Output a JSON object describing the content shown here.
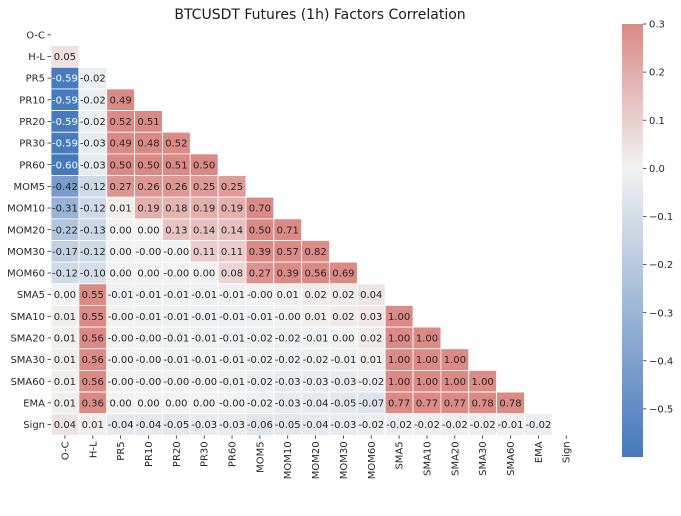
{
  "chart_data": {
    "type": "heatmap",
    "title": "BTCUSDT Futures (1h) Factors Correlation",
    "labels": [
      "O-C",
      "H-L",
      "PR5",
      "PR10",
      "PR20",
      "PR30",
      "PR60",
      "MOM5",
      "MOM10",
      "MOM20",
      "MOM30",
      "MOM60",
      "SMA5",
      "SMA10",
      "SMA20",
      "SMA30",
      "SMA60",
      "EMA",
      "Sign"
    ],
    "mask": "upper-triangle (diagonal and above hidden)",
    "rows": [
      [],
      [
        "0.05"
      ],
      [
        "-0.59",
        "-0.02"
      ],
      [
        "-0.59",
        "-0.02",
        "0.49"
      ],
      [
        "-0.59",
        "-0.02",
        "0.52",
        "0.51"
      ],
      [
        "-0.59",
        "-0.03",
        "0.49",
        "0.48",
        "0.52"
      ],
      [
        "-0.60",
        "-0.03",
        "0.50",
        "0.50",
        "0.51",
        "0.50"
      ],
      [
        "-0.42",
        "-0.12",
        "0.27",
        "0.26",
        "0.26",
        "0.25",
        "0.25"
      ],
      [
        "-0.31",
        "-0.12",
        "0.01",
        "0.19",
        "0.18",
        "0.19",
        "0.19",
        "0.70"
      ],
      [
        "-0.22",
        "-0.13",
        "0.00",
        "0.00",
        "0.13",
        "0.14",
        "0.14",
        "0.50",
        "0.71"
      ],
      [
        "-0.17",
        "-0.12",
        "0.00",
        "-0.00",
        "-0.00",
        "0.11",
        "0.11",
        "0.39",
        "0.57",
        "0.82"
      ],
      [
        "-0.12",
        "-0.10",
        "0.00",
        "0.00",
        "-0.00",
        "0.00",
        "0.08",
        "0.27",
        "0.39",
        "0.56",
        "0.69"
      ],
      [
        "0.00",
        "0.55",
        "-0.01",
        "-0.01",
        "-0.01",
        "-0.01",
        "-0.01",
        "-0.00",
        "0.01",
        "0.02",
        "0.02",
        "0.04"
      ],
      [
        "0.01",
        "0.55",
        "-0.00",
        "-0.01",
        "-0.01",
        "-0.01",
        "-0.01",
        "-0.01",
        "-0.00",
        "0.01",
        "0.02",
        "0.03",
        "1.00"
      ],
      [
        "0.01",
        "0.56",
        "-0.00",
        "-0.00",
        "-0.01",
        "-0.01",
        "-0.01",
        "-0.02",
        "-0.02",
        "-0.01",
        "0.00",
        "0.02",
        "1.00",
        "1.00"
      ],
      [
        "0.01",
        "0.56",
        "-0.00",
        "-0.00",
        "-0.01",
        "-0.01",
        "-0.01",
        "-0.02",
        "-0.02",
        "-0.02",
        "-0.01",
        "0.01",
        "1.00",
        "1.00",
        "1.00"
      ],
      [
        "0.01",
        "0.56",
        "-0.00",
        "-0.00",
        "-0.00",
        "-0.00",
        "-0.01",
        "-0.02",
        "-0.03",
        "-0.03",
        "-0.03",
        "-0.02",
        "1.00",
        "1.00",
        "1.00",
        "1.00"
      ],
      [
        "0.01",
        "0.36",
        "0.00",
        "0.00",
        "0.00",
        "0.00",
        "-0.00",
        "-0.02",
        "-0.03",
        "-0.04",
        "-0.05",
        "-0.07",
        "0.77",
        "0.77",
        "0.77",
        "0.78",
        "0.78"
      ],
      [
        "0.04",
        "0.01",
        "-0.04",
        "-0.04",
        "-0.05",
        "-0.03",
        "-0.03",
        "-0.06",
        "-0.05",
        "-0.04",
        "-0.03",
        "-0.02",
        "-0.02",
        "-0.02",
        "-0.02",
        "-0.02",
        "-0.01",
        "-0.02"
      ]
    ],
    "color_scale": {
      "vmin": -0.6,
      "vcenter": 0.0,
      "vmax": 0.3,
      "colors": {
        "low": "#4479bb",
        "center": "#f2f2f2",
        "high": "#db8a86"
      },
      "ticks": [
        "0.3",
        "0.2",
        "0.1",
        "0.0",
        "−0.1",
        "−0.2",
        "−0.3",
        "−0.4",
        "−0.5"
      ],
      "tick_values": [
        0.3,
        0.2,
        0.1,
        0.0,
        -0.1,
        -0.2,
        -0.3,
        -0.4,
        -0.5
      ]
    },
    "grid": false,
    "legend": "colorbar-right"
  }
}
